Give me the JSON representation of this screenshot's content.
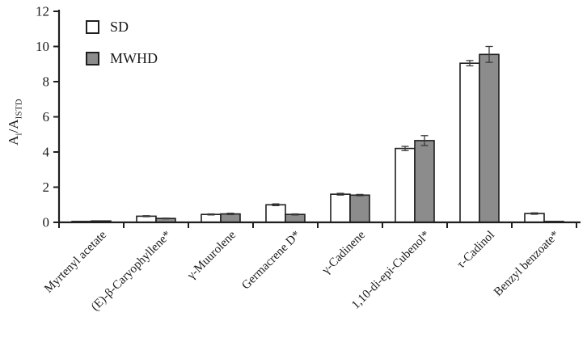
{
  "figure": {
    "background": "#ffffff"
  },
  "y_axis": {
    "label_base_1": "A",
    "label_sub_1": "i",
    "label_divider": "/",
    "label_base_2": "A",
    "label_sub_2": "ISTD"
  },
  "chart_data": {
    "type": "bar",
    "title": "",
    "xlabel": "",
    "ylabel": "Ai/AISTD",
    "ylim": [
      0,
      12
    ],
    "yticks": [
      0,
      2,
      4,
      6,
      8,
      10,
      12
    ],
    "grid": false,
    "legend_position": "upper-left-inside",
    "categories": [
      "Myrtenyl acetate",
      "(E)-β-Caryophyllene*",
      "γ-Muurolene",
      "Germacrene D*",
      "γ-Cadinene",
      "1,10-di-epi-Cubenol*",
      "τ-Cadinol",
      "Benzyl benzoate*"
    ],
    "series": [
      {
        "name": "SD",
        "fill": "#ffffff",
        "values": [
          0.05,
          0.35,
          0.45,
          1.0,
          1.6,
          4.2,
          9.05,
          0.5
        ],
        "errors": [
          0,
          0.03,
          0.03,
          0.05,
          0.05,
          0.12,
          0.15,
          0.04
        ]
      },
      {
        "name": "MWHD",
        "fill": "#8c8c8c",
        "values": [
          0.08,
          0.22,
          0.48,
          0.45,
          1.55,
          4.65,
          9.55,
          0.05
        ],
        "errors": [
          0,
          0.02,
          0.04,
          0.03,
          0.04,
          0.28,
          0.45,
          0
        ]
      }
    ],
    "bar_outline": "#1f1f1f",
    "axis_color": "#1f1f1f",
    "error_bar_color": "#3a3a3a"
  }
}
